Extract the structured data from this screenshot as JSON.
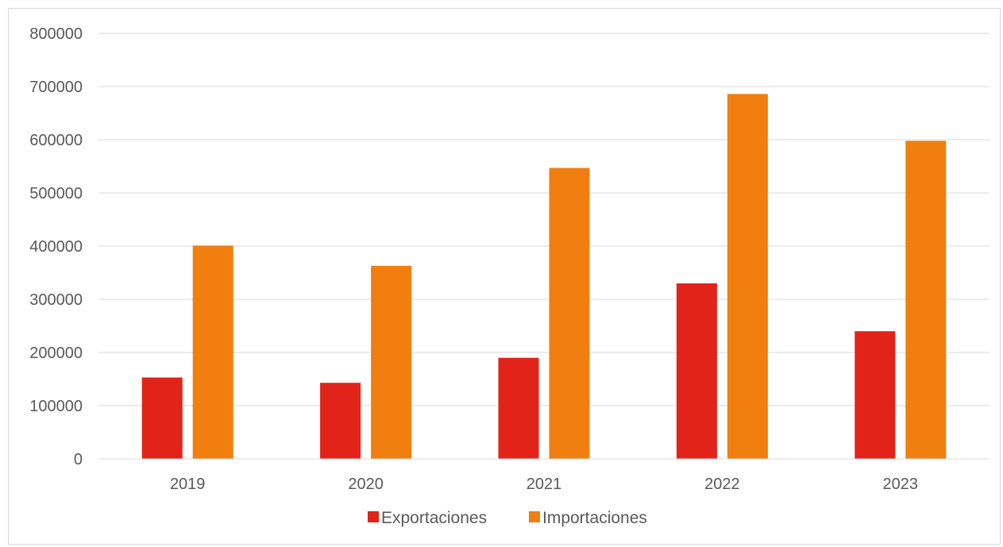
{
  "chart_data": {
    "type": "bar",
    "categories": [
      "2019",
      "2020",
      "2021",
      "2022",
      "2023"
    ],
    "series": [
      {
        "name": "Exportaciones",
        "color": "#e2231a",
        "values": [
          153000,
          143000,
          190000,
          330000,
          240000
        ]
      },
      {
        "name": "Importaciones",
        "color": "#f07f0f",
        "values": [
          401000,
          363000,
          547000,
          686000,
          598000
        ]
      }
    ],
    "ylim": [
      0,
      800000
    ],
    "yticks": [
      "0",
      "100000",
      "200000",
      "300000",
      "400000",
      "500000",
      "600000",
      "700000",
      "800000"
    ],
    "grid": true,
    "legend_position": "bottom"
  }
}
